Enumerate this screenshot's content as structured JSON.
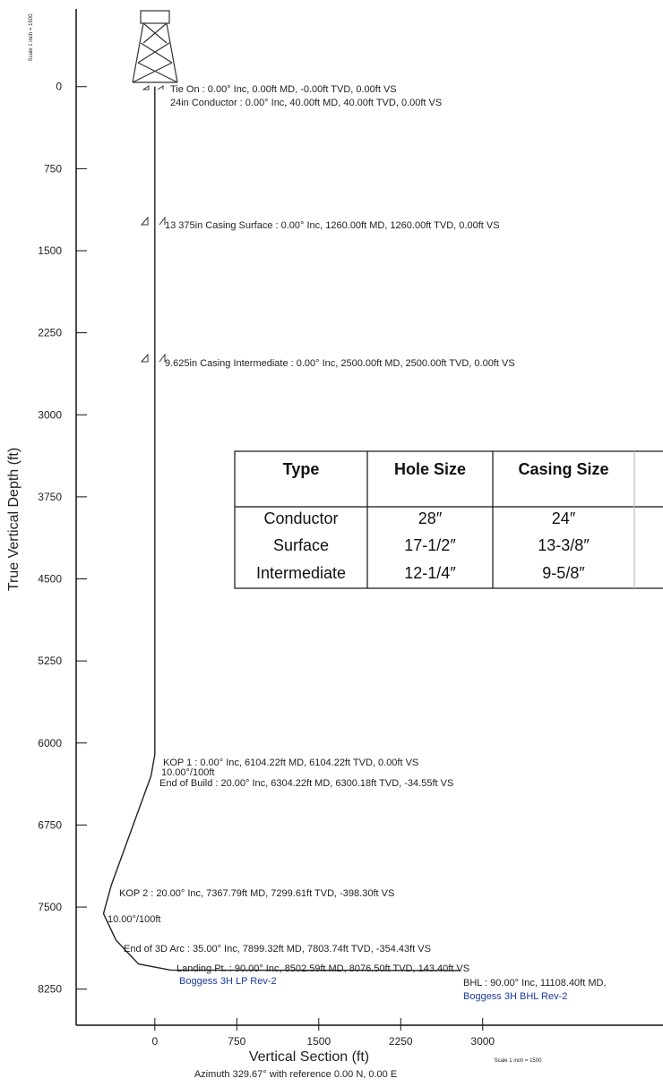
{
  "chart_data": {
    "type": "line",
    "x_label": "Vertical Section (ft)",
    "y_label": "True Vertical Depth (ft)",
    "subtitle": "Azimuth 329.67° with reference 0.00 N, 0.00 E",
    "scale_note": "Scale 1 inch = 1500",
    "xlim": [
      -720,
      4650
    ],
    "xticks": [
      0,
      750,
      1500,
      2250,
      3000
    ],
    "ylim": [
      8580,
      -710
    ],
    "yticks": [
      0,
      750,
      1500,
      2250,
      3000,
      3750,
      4500,
      5250,
      6000,
      6750,
      7500,
      8250
    ],
    "series": [
      {
        "color": "#222222",
        "x": [
          0,
          0,
          -34.55,
          -398.3,
          -470,
          -354.43,
          -150,
          143.4,
          2800
        ],
        "values": [
          0,
          6104.22,
          6300.18,
          7299.61,
          7560,
          7803.74,
          8020,
          8076.5,
          8080
        ]
      }
    ],
    "annotations": [
      "Tie On : 0.00° Inc, 0.00ft MD, -0.00ft TVD, 0.00ft VS",
      "24in Conductor : 0.00° Inc, 40.00ft MD, 40.00ft TVD, 0.00ft VS",
      "13 375in Casing Surface : 0.00° Inc, 1260.00ft MD, 1260.00ft TVD, 0.00ft VS",
      "9.625in Casing Intermediate : 0.00° Inc, 2500.00ft MD, 2500.00ft TVD, 0.00ft VS",
      "KOP 1 : 0.00° Inc, 6104.22ft MD, 6104.22ft TVD, 0.00ft VS",
      "10.00°/100ft",
      "End of Build : 20.00° Inc, 6304.22ft MD, 6300.18ft TVD, -34.55ft VS",
      "KOP 2 : 20.00° Inc, 7367.79ft MD, 7299.61ft TVD, -398.30ft VS",
      "10.00°/100ft",
      "End of 3D Arc : 35.00° Inc, 7899.32ft MD, 7803.74ft TVD, -354.43ft VS",
      "Landing Pt. : 90.00° Inc, 8502.59ft MD, 8076.50ft TVD, 143.40ft VS",
      "Boggess 3H LP Rev-2",
      "BHL : 90.00° Inc, 11108.40ft MD,",
      "Boggess 3H BHL Rev-2"
    ]
  },
  "table": {
    "header": [
      "Type",
      "Hole Size",
      "Casing Size"
    ],
    "rows": [
      [
        "Conductor",
        "28″",
        "24″"
      ],
      [
        "Surface",
        "17-1/2″",
        "13-3/8″"
      ],
      [
        "Intermediate",
        "12-1/4″",
        "9-5/8″"
      ]
    ]
  }
}
